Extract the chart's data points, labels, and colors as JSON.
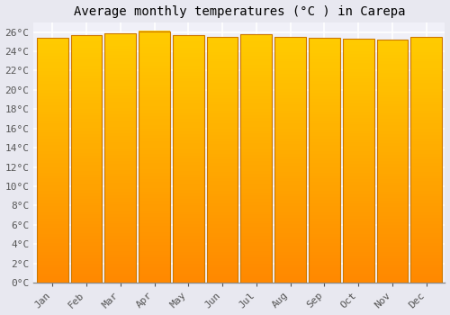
{
  "title": "Average monthly temperatures (°C ) in Carepa",
  "months": [
    "Jan",
    "Feb",
    "Mar",
    "Apr",
    "May",
    "Jun",
    "Jul",
    "Aug",
    "Sep",
    "Oct",
    "Nov",
    "Dec"
  ],
  "temperatures": [
    25.4,
    25.7,
    25.9,
    26.1,
    25.7,
    25.5,
    25.8,
    25.5,
    25.4,
    25.3,
    25.2,
    25.5
  ],
  "ylim": [
    0,
    27
  ],
  "yticks": [
    0,
    2,
    4,
    6,
    8,
    10,
    12,
    14,
    16,
    18,
    20,
    22,
    24,
    26
  ],
  "ytick_labels": [
    "0°C",
    "2°C",
    "4°C",
    "6°C",
    "8°C",
    "10°C",
    "12°C",
    "14°C",
    "16°C",
    "18°C",
    "20°C",
    "22°C",
    "24°C",
    "26°C"
  ],
  "bar_color_top": "#FFCC00",
  "bar_color_bottom": "#FF8800",
  "bar_edge_color": "#CC7700",
  "background_color": "#e8e8f0",
  "plot_bg_color": "#f0f0f8",
  "title_fontsize": 10,
  "tick_fontsize": 8,
  "grid_color": "#ffffff",
  "grid_linewidth": 1.2,
  "bar_width": 0.92
}
